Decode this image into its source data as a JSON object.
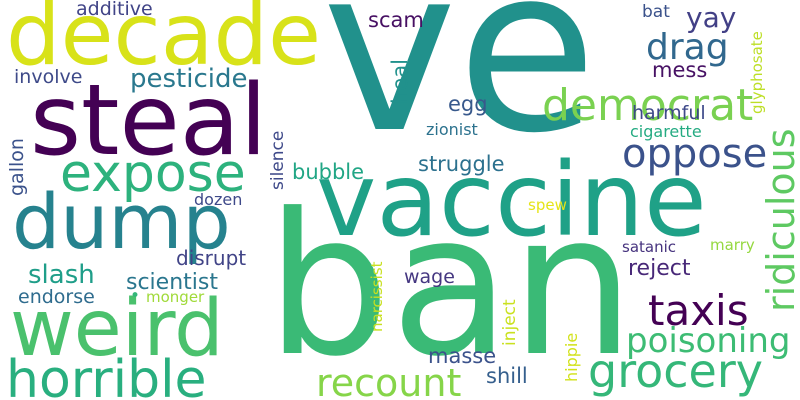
{
  "words": [
    {
      "text": "ve",
      "color": "#21918c",
      "orientation": "horizontal"
    },
    {
      "text": "ban",
      "color": "#3aba76",
      "orientation": "horizontal"
    },
    {
      "text": "vaccine",
      "color": "#1fa187",
      "orientation": "horizontal"
    },
    {
      "text": "steal",
      "color": "#440154",
      "orientation": "horizontal"
    },
    {
      "text": "decade",
      "color": "#d8e219",
      "orientation": "horizontal"
    },
    {
      "text": "dump",
      "color": "#26828e",
      "orientation": "horizontal"
    },
    {
      "text": "weird",
      "color": "#4ac16d",
      "orientation": "horizontal"
    },
    {
      "text": "horrible",
      "color": "#29af7f",
      "orientation": "horizontal"
    },
    {
      "text": "expose",
      "color": "#2db27d",
      "orientation": "horizontal"
    },
    {
      "text": "grocery",
      "color": "#35b779",
      "orientation": "horizontal"
    },
    {
      "text": "democrat",
      "color": "#7ad151",
      "orientation": "horizontal"
    },
    {
      "text": "taxis",
      "color": "#440154",
      "orientation": "horizontal"
    },
    {
      "text": "oppose",
      "color": "#3b528b",
      "orientation": "horizontal"
    },
    {
      "text": "ridiculous",
      "color": "#5ec962",
      "orientation": "vertical"
    },
    {
      "text": "recount",
      "color": "#86d549",
      "orientation": "horizontal"
    },
    {
      "text": "poisoning",
      "color": "#3dbc74",
      "orientation": "horizontal"
    },
    {
      "text": "drag",
      "color": "#31688e",
      "orientation": "horizontal"
    },
    {
      "text": "pesticide",
      "color": "#2a788e",
      "orientation": "horizontal"
    },
    {
      "text": "yay",
      "color": "#424086",
      "orientation": "horizontal"
    },
    {
      "text": "slash",
      "color": "#1f9e89",
      "orientation": "horizontal"
    },
    {
      "text": "scientist",
      "color": "#2a768e",
      "orientation": "horizontal"
    },
    {
      "text": "bubble",
      "color": "#21a685",
      "orientation": "horizontal"
    },
    {
      "text": "struggle",
      "color": "#2c718e",
      "orientation": "horizontal"
    },
    {
      "text": "reject",
      "color": "#482878",
      "orientation": "horizontal"
    },
    {
      "text": "mess",
      "color": "#471164",
      "orientation": "horizontal"
    },
    {
      "text": "harmful",
      "color": "#3e4989",
      "orientation": "horizontal"
    },
    {
      "text": "endorse",
      "color": "#2f6c8e",
      "orientation": "horizontal"
    },
    {
      "text": "disrupt",
      "color": "#414487",
      "orientation": "horizontal"
    },
    {
      "text": "masse",
      "color": "#3b528b",
      "orientation": "horizontal"
    },
    {
      "text": "egg",
      "color": "#38598c",
      "orientation": "horizontal"
    },
    {
      "text": "shill",
      "color": "#355f8d",
      "orientation": "horizontal"
    },
    {
      "text": "wage",
      "color": "#453781",
      "orientation": "horizontal"
    },
    {
      "text": "scam",
      "color": "#471063",
      "orientation": "horizontal"
    },
    {
      "text": "involve",
      "color": "#3e4a89",
      "orientation": "horizontal"
    },
    {
      "text": "additive",
      "color": "#414487",
      "orientation": "horizontal"
    },
    {
      "text": "heal",
      "color": "#21918c",
      "orientation": "vertical"
    },
    {
      "text": "gallon",
      "color": "#3b528b",
      "orientation": "vertical"
    },
    {
      "text": "silence",
      "color": "#3e4989",
      "orientation": "vertical"
    },
    {
      "text": "dozen",
      "color": "#3e4989",
      "orientation": "horizontal"
    },
    {
      "text": "zionist",
      "color": "#2c728e",
      "orientation": "horizontal"
    },
    {
      "text": "cigarette",
      "color": "#25ab82",
      "orientation": "horizontal"
    },
    {
      "text": "bat",
      "color": "#3b528b",
      "orientation": "horizontal"
    },
    {
      "text": "glyphosate",
      "color": "#bddf26",
      "orientation": "vertical"
    },
    {
      "text": "spew",
      "color": "#e5e419",
      "orientation": "horizontal"
    },
    {
      "text": "satanic",
      "color": "#46337e",
      "orientation": "horizontal"
    },
    {
      "text": "marry",
      "color": "#95d840",
      "orientation": "horizontal"
    },
    {
      "text": "narcissist",
      "color": "#c8e020",
      "orientation": "vertical"
    },
    {
      "text": "inject",
      "color": "#cae11f",
      "orientation": "vertical"
    },
    {
      "text": "hippie",
      "color": "#d2e21b",
      "orientation": "vertical"
    },
    {
      "text": "monger",
      "color": "#a0da39",
      "orientation": "horizontal"
    },
    {
      "text": "•",
      "color": "#35b779",
      "orientation": "horizontal"
    }
  ]
}
